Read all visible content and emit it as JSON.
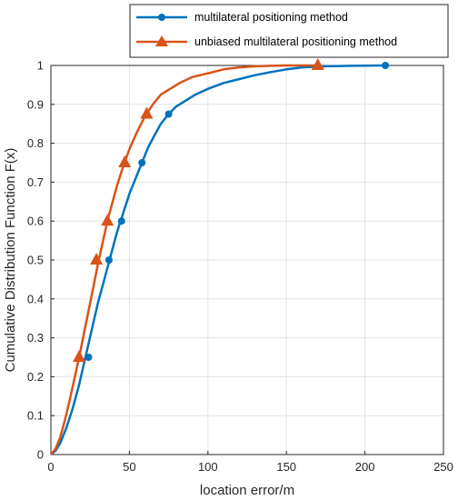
{
  "chart_data": {
    "type": "line",
    "xlabel": "location error/m",
    "ylabel": "Cumulative Distribution Function  F(x)",
    "xlim": [
      0,
      250
    ],
    "ylim": [
      0,
      1
    ],
    "xticks": [
      0,
      50,
      100,
      150,
      200,
      250
    ],
    "yticks": [
      0,
      0.1,
      0.2,
      0.3,
      0.4,
      0.5,
      0.6,
      0.7,
      0.8,
      0.9,
      1
    ],
    "ytick_labels": [
      "0",
      "0.1",
      "0.2",
      "0.3",
      "0.4",
      "0.5",
      "0.6",
      "0.7",
      "0.8",
      "0.9",
      "1"
    ],
    "grid": true,
    "legend_position": "top-right",
    "series": [
      {
        "name": "multilateral positioning method",
        "color": "#0072BD",
        "marker": "circle",
        "x": [
          0,
          3,
          6,
          10,
          14,
          18,
          22,
          26,
          30,
          34,
          38,
          42,
          46,
          50,
          54,
          58,
          62,
          66,
          70,
          75,
          80,
          86,
          92,
          100,
          110,
          120,
          130,
          140,
          150,
          160,
          175,
          190,
          213
        ],
        "y": [
          0,
          0.01,
          0.03,
          0.07,
          0.12,
          0.18,
          0.25,
          0.32,
          0.39,
          0.45,
          0.51,
          0.57,
          0.62,
          0.67,
          0.71,
          0.75,
          0.79,
          0.82,
          0.85,
          0.875,
          0.895,
          0.91,
          0.925,
          0.94,
          0.955,
          0.965,
          0.975,
          0.983,
          0.99,
          0.995,
          0.998,
          0.999,
          1
        ],
        "markers": [
          [
            24,
            0.25
          ],
          [
            37,
            0.5
          ],
          [
            45,
            0.6
          ],
          [
            58,
            0.75
          ],
          [
            75,
            0.875
          ],
          [
            213,
            1.0
          ]
        ]
      },
      {
        "name": "unbiased multilateral positioning method",
        "color": "#D95319",
        "marker": "triangle",
        "x": [
          0,
          3,
          6,
          9,
          12,
          15,
          18,
          21,
          24,
          27,
          30,
          33,
          36,
          39,
          42,
          46,
          50,
          55,
          60,
          65,
          70,
          76,
          82,
          90,
          100,
          110,
          120,
          130,
          140,
          150,
          160,
          170
        ],
        "y": [
          0,
          0.015,
          0.045,
          0.09,
          0.14,
          0.195,
          0.25,
          0.31,
          0.37,
          0.43,
          0.49,
          0.545,
          0.6,
          0.645,
          0.69,
          0.74,
          0.785,
          0.83,
          0.87,
          0.9,
          0.925,
          0.94,
          0.955,
          0.97,
          0.98,
          0.99,
          0.995,
          0.998,
          0.999,
          1,
          1,
          1
        ],
        "markers": [
          [
            18,
            0.25
          ],
          [
            29,
            0.5
          ],
          [
            36,
            0.6
          ],
          [
            47,
            0.75
          ],
          [
            61,
            0.875
          ],
          [
            170,
            1.0
          ]
        ]
      }
    ]
  }
}
